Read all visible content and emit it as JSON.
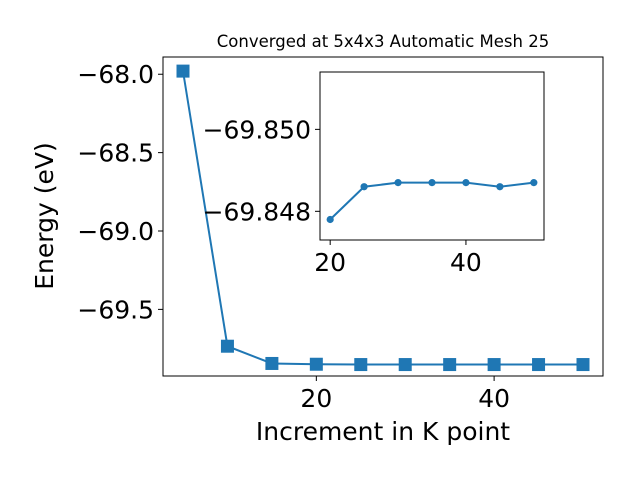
{
  "chart_data": [
    {
      "type": "line",
      "title": "Converged at 5x4x3 Automatic Mesh 25",
      "xlabel": "Increment in K point",
      "ylabel": "Energy (eV)",
      "series": [
        {
          "x": [
            5,
            10,
            15,
            20,
            25,
            30,
            35,
            40,
            45,
            50
          ],
          "values": [
            -67.98,
            -69.735,
            -69.845,
            -69.85,
            -69.852,
            -69.852,
            -69.852,
            -69.852,
            -69.852,
            -69.852
          ],
          "color": "#1f77b4",
          "marker": "square"
        }
      ],
      "xlim": [
        2.75,
        52.25
      ],
      "ylim": [
        -69.925,
        -67.89
      ],
      "xticks": [
        20,
        40
      ],
      "yticks": [
        -68.0,
        -68.5,
        -69.0,
        -69.5
      ],
      "xtick_labels": [
        "20",
        "40"
      ],
      "ytick_labels": [
        "−68.0",
        "−68.5",
        "−69.0",
        "−69.5"
      ],
      "grid": false
    },
    {
      "type": "line",
      "inset": true,
      "series": [
        {
          "x": [
            20,
            25,
            30,
            35,
            40,
            45,
            50
          ],
          "values": [
            -69.8478,
            -69.8486,
            -69.8487,
            -69.8487,
            -69.8487,
            -69.8486,
            -69.8487
          ],
          "color": "#1f77b4",
          "marker": "circle"
        }
      ],
      "xlim": [
        18.5,
        51.5
      ],
      "ylim": [
        -69.8514,
        -69.8473
      ],
      "yaxis_inverted": true,
      "xticks": [
        20,
        40
      ],
      "yticks": [
        -69.85,
        -69.848
      ],
      "xtick_labels": [
        "20",
        "40"
      ],
      "ytick_labels": [
        "−69.850",
        "−69.848"
      ],
      "grid": false
    }
  ]
}
